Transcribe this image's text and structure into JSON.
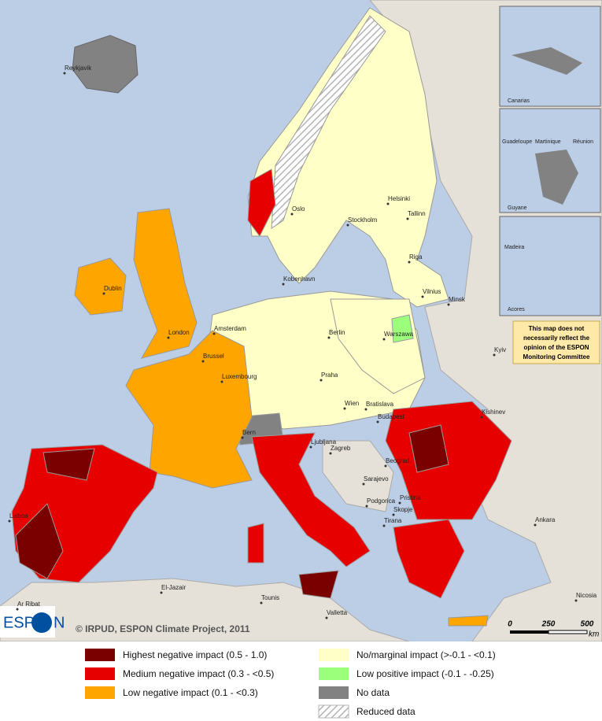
{
  "map": {
    "cities": [
      "Reykjavik",
      "Dublin",
      "London",
      "Amsterdam",
      "Brussel",
      "Luxembourg",
      "Oslo",
      "Stockholm",
      "Helsinki",
      "Tallinn",
      "Riga",
      "Vilnius",
      "Minsk",
      "Kobenhavn",
      "Berlin",
      "Warszawa",
      "Praha",
      "Wien",
      "Bratislava",
      "Budapest",
      "Bern",
      "Ljubljana",
      "Zagreb",
      "Beograd",
      "Sarajevo",
      "Podgorica",
      "Pristina",
      "Skopje",
      "Tirana",
      "Kishinev",
      "Kyiv",
      "Ankara",
      "Lisboa",
      "Valletta",
      "Tounis",
      "El-Jazair",
      "Ar Ribat",
      "Nicosia"
    ],
    "insets": [
      "Canarias",
      "Guadeloupe",
      "Martinique",
      "Réunion",
      "Guyane",
      "Madeira",
      "Acores"
    ],
    "disclaimer": [
      "This map does not",
      "necessarily reflect the",
      "opinion of the ESPON",
      "Monitoring Committee"
    ],
    "scale": {
      "ticks": [
        "0",
        "250",
        "500"
      ],
      "unit": "km"
    },
    "copyright": "© IRPUD, ESPON Climate Project, 2011",
    "logo": {
      "left": "ESP",
      "right": "N"
    }
  },
  "legend": {
    "items": [
      {
        "label": "Highest negative impact (0.5 - 1.0)",
        "color": "#7a0000"
      },
      {
        "label": "Medium negative impact (0.3 - <0.5)",
        "color": "#e60000"
      },
      {
        "label": "Low negative impact (0.1 - <0.3)",
        "color": "#ffa500"
      },
      {
        "label": "No/marginal impact (>-0.1 - <0.1)",
        "color": "#ffffc8"
      },
      {
        "label": "Low positive impact (-0.1 - -0.25)",
        "color": "#9cff7c"
      },
      {
        "label": "No data",
        "color": "#828282"
      },
      {
        "label": "Reduced data",
        "color": "#b4b4b4"
      }
    ]
  }
}
